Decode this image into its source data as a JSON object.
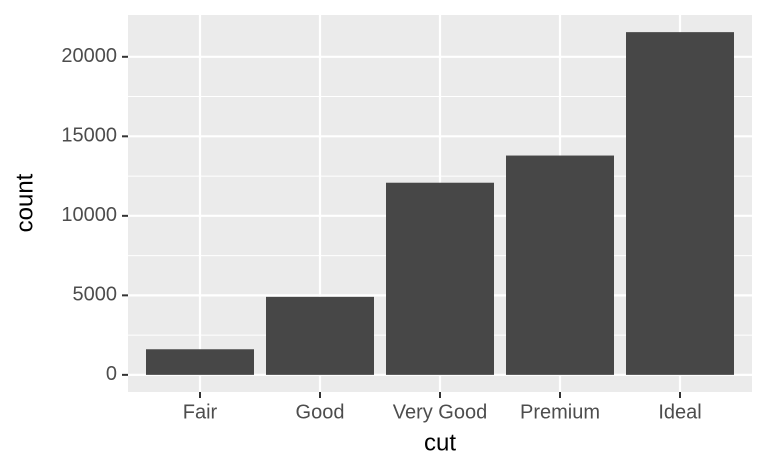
{
  "chart_data": {
    "type": "bar",
    "x_label": "cut",
    "y_label": "count",
    "categories": [
      "Fair",
      "Good",
      "Very Good",
      "Premium",
      "Ideal"
    ],
    "values": [
      1610,
      4906,
      12082,
      13791,
      21551
    ],
    "color": "#474747",
    "ylim": [
      -1077.55,
      22628.55
    ],
    "yticks": [
      0,
      5000,
      10000,
      15000,
      20000
    ],
    "minor_yticks": [
      2500,
      7500,
      12500,
      17500
    ],
    "grid": true
  }
}
